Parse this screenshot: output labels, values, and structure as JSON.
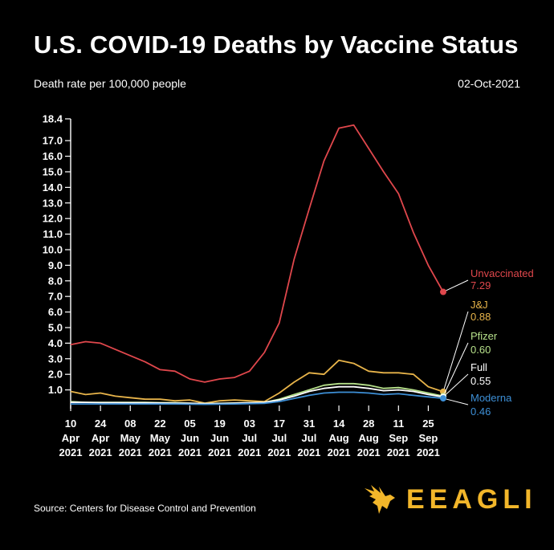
{
  "header": {
    "title": "U.S. COVID-19 Deaths by Vaccine Status",
    "subtitle": "Death rate per 100,000 people",
    "date": "02-Oct-2021"
  },
  "footer": {
    "source": "Source: Centers for Disease Control and Prevention",
    "brand": "EEAGLI"
  },
  "colors": {
    "background": "#000000",
    "unvaccinated": "#e0474c",
    "jj": "#e8b44a",
    "pfizer": "#b6e08a",
    "full": "#ffffff",
    "moderna": "#3d8fd6",
    "brand": "#f2b62a"
  },
  "chart_data": {
    "type": "line",
    "x": [
      "2021-04-10",
      "2021-04-17",
      "2021-04-24",
      "2021-05-01",
      "2021-05-08",
      "2021-05-15",
      "2021-05-22",
      "2021-05-29",
      "2021-06-05",
      "2021-06-12",
      "2021-06-19",
      "2021-06-26",
      "2021-07-03",
      "2021-07-10",
      "2021-07-17",
      "2021-07-24",
      "2021-07-31",
      "2021-08-07",
      "2021-08-14",
      "2021-08-21",
      "2021-08-28",
      "2021-09-04",
      "2021-09-11",
      "2021-09-18",
      "2021-09-25",
      "2021-10-02"
    ],
    "x_tick_labels": [
      [
        "10",
        "Apr",
        "2021"
      ],
      [
        "24",
        "Apr",
        "2021"
      ],
      [
        "08",
        "May",
        "2021"
      ],
      [
        "22",
        "May",
        "2021"
      ],
      [
        "05",
        "Jun",
        "2021"
      ],
      [
        "19",
        "Jun",
        "2021"
      ],
      [
        "03",
        "Jul",
        "2021"
      ],
      [
        "17",
        "Jul",
        "2021"
      ],
      [
        "31",
        "Jul",
        "2021"
      ],
      [
        "14",
        "Aug",
        "2021"
      ],
      [
        "28",
        "Aug",
        "2021"
      ],
      [
        "11",
        "Sep",
        "2021"
      ],
      [
        "25",
        "Sep",
        "2021"
      ]
    ],
    "y_ticks": [
      "1.0",
      "2.0",
      "3.0",
      "4.0",
      "5.0",
      "6.0",
      "7.0",
      "8.0",
      "9.0",
      "10.0",
      "11.0",
      "12.0",
      "13.0",
      "14.0",
      "15.0",
      "16.0",
      "17.0",
      "18.4"
    ],
    "y_tick_values": [
      1,
      2,
      3,
      4,
      5,
      6,
      7,
      8,
      9,
      10,
      11,
      12,
      13,
      14,
      15,
      16,
      17,
      18.4
    ],
    "ylim": [
      0,
      18.4
    ],
    "grid": false,
    "series": [
      {
        "name": "Unvaccinated",
        "label_value": "7.29",
        "color": "#e0474c",
        "values": [
          3.9,
          4.1,
          4.0,
          3.6,
          3.2,
          2.8,
          2.3,
          2.2,
          1.7,
          1.5,
          1.7,
          1.8,
          2.2,
          3.4,
          5.3,
          9.4,
          12.6,
          15.7,
          17.8,
          18.0,
          16.5,
          15.0,
          13.6,
          11.1,
          9.0,
          7.29
        ]
      },
      {
        "name": "J&J",
        "label_value": "0.88",
        "color": "#e8b44a",
        "values": [
          0.9,
          0.7,
          0.8,
          0.6,
          0.5,
          0.4,
          0.4,
          0.3,
          0.35,
          0.15,
          0.3,
          0.35,
          0.3,
          0.25,
          0.8,
          1.5,
          2.1,
          2.0,
          2.9,
          2.7,
          2.2,
          2.1,
          2.1,
          2.0,
          1.2,
          0.88
        ]
      },
      {
        "name": "Pfizer",
        "label_value": "0.60",
        "color": "#b6e08a",
        "values": [
          0.25,
          0.2,
          0.2,
          0.2,
          0.2,
          0.2,
          0.18,
          0.18,
          0.15,
          0.12,
          0.14,
          0.16,
          0.18,
          0.2,
          0.4,
          0.7,
          1.0,
          1.3,
          1.4,
          1.4,
          1.3,
          1.1,
          1.15,
          1.0,
          0.8,
          0.6
        ]
      },
      {
        "name": "Full",
        "label_value": "0.55",
        "color": "#ffffff",
        "values": [
          0.2,
          0.2,
          0.18,
          0.18,
          0.17,
          0.17,
          0.16,
          0.15,
          0.14,
          0.12,
          0.13,
          0.15,
          0.17,
          0.2,
          0.35,
          0.6,
          0.9,
          1.1,
          1.2,
          1.2,
          1.1,
          0.95,
          1.0,
          0.9,
          0.7,
          0.55
        ]
      },
      {
        "name": "Moderna",
        "label_value": "0.46",
        "color": "#3d8fd6",
        "values": [
          0.1,
          0.1,
          0.1,
          0.1,
          0.1,
          0.1,
          0.1,
          0.1,
          0.08,
          0.07,
          0.08,
          0.1,
          0.12,
          0.14,
          0.25,
          0.45,
          0.65,
          0.8,
          0.85,
          0.85,
          0.8,
          0.7,
          0.75,
          0.65,
          0.55,
          0.46
        ]
      }
    ]
  }
}
